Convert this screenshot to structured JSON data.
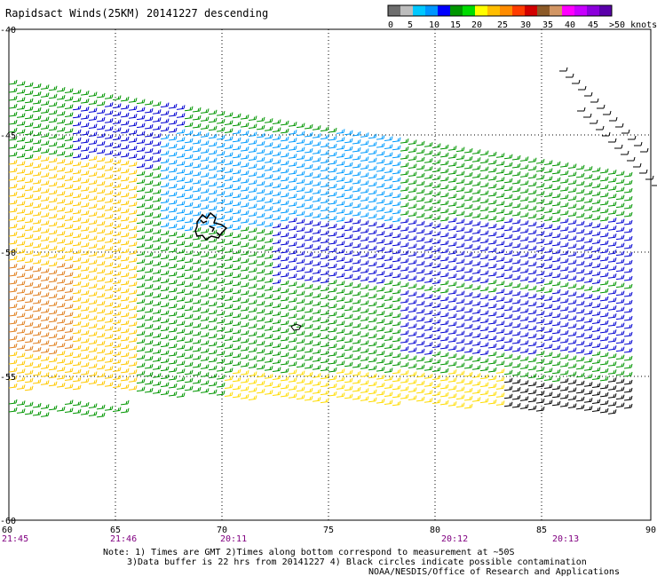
{
  "title": "Rapidsact Winds(25KM) 20141227 descending",
  "colorbar": {
    "colors": [
      "#6e6e6e",
      "#bdbdbd",
      "#00c8ff",
      "#0096ff",
      "#0000ff",
      "#009600",
      "#00dc00",
      "#ffff00",
      "#ffbe00",
      "#ff8c00",
      "#ff3c00",
      "#d20000",
      "#8c5a28",
      "#d29664",
      "#ff00ff",
      "#c800ff",
      "#8c00dc",
      "#5a00aa"
    ],
    "labels": [
      "0",
      "5",
      "10",
      "15",
      "20",
      "25",
      "30",
      "35",
      "40",
      "45",
      ">50 knots"
    ]
  },
  "axes": {
    "lat_labels": [
      "-40",
      "-45",
      "-50",
      "-55",
      "-60"
    ],
    "lon_labels": [
      "60",
      "65",
      "70",
      "75",
      "80",
      "85",
      "90"
    ],
    "time_labels": [
      "21:45",
      "21:46",
      "20:11",
      "20:12",
      "20:13"
    ]
  },
  "notes": {
    "line1": "Note: 1) Times are GMT 2)Times along bottom correspond to measurement at ~50S",
    "line2": "3)Data buffer is 22 hrs from 20141227 4) Black circles indicate possible contamination",
    "credit": "NOAA/NESDIS/Office of Research and Applications"
  }
}
